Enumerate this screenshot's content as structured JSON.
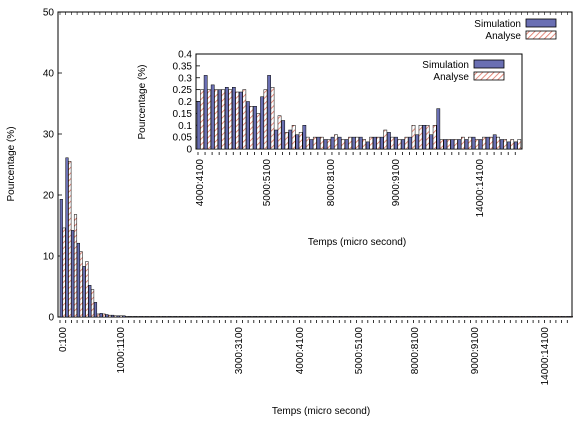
{
  "chart_data": [
    {
      "type": "bar",
      "ylabel": "Pourcentage (%)",
      "xlabel": "Temps (micro second)",
      "ylim": [
        0,
        50
      ],
      "yticks": [
        0,
        10,
        20,
        30,
        40,
        50
      ],
      "tick_labels": [
        "0:100",
        "1000:1100",
        "3000:3100",
        "4000:4100",
        "5000:5100",
        "8000:8100",
        "9000:9100",
        "14000:14100"
      ],
      "legend_position": "top-right",
      "series": [
        {
          "name": "Simulation",
          "color": "#6a6fb3",
          "values": [
            19.3,
            26.1,
            14.2,
            12.1,
            8.3,
            5.2,
            2.4,
            0.6,
            0.4,
            0.3,
            0.2,
            0.2,
            0.1,
            0.1,
            0.1,
            0.1,
            0.1,
            0.1,
            0.1,
            0.1,
            0.1,
            0.1,
            0.1,
            0.1,
            0.1,
            0.1,
            0.1,
            0.1,
            0.1,
            0.1,
            0.1,
            0.1,
            0.1,
            0.1,
            0.1,
            0.1,
            0.1,
            0.1,
            0.1,
            0.1,
            0.1,
            0.1,
            0.1,
            0.1,
            0.1,
            0.1,
            0.1,
            0.1,
            0.1,
            0.1,
            0.1,
            0.1,
            0.1,
            0.1,
            0.1,
            0.1,
            0.1,
            0.1,
            0.1,
            0.1,
            0.1,
            0.1,
            0.1,
            0.1,
            0.1,
            0.1,
            0.1,
            0.1,
            0.1,
            0.1,
            0.1,
            0.1,
            0.1,
            0.1,
            0.1,
            0.1,
            0.1,
            0.1,
            0.1,
            0.1,
            0.1,
            0.1,
            0.1,
            0.1,
            0.1,
            0.1,
            0.1,
            0.1,
            0.1,
            0.1
          ]
        },
        {
          "name": "Analyse",
          "color": "#e07060",
          "values": [
            14.6,
            25.5,
            16.8,
            10.7,
            9.1,
            4.5,
            0.5,
            0.5,
            0.3,
            0.2,
            0.2,
            0.1,
            0.1,
            0.1,
            0.1,
            0.1,
            0.1,
            0.1,
            0.1,
            0.1,
            0.1,
            0.1,
            0.1,
            0.1,
            0.1,
            0.1,
            0.1,
            0.1,
            0.1,
            0.1,
            0.1,
            0.1,
            0.1,
            0.1,
            0.1,
            0.1,
            0.1,
            0.1,
            0.1,
            0.1,
            0.1,
            0.1,
            0.1,
            0.1,
            0.1,
            0.1,
            0.1,
            0.1,
            0.1,
            0.1,
            0.1,
            0.1,
            0.1,
            0.1,
            0.1,
            0.1,
            0.1,
            0.1,
            0.1,
            0.1,
            0.1,
            0.1,
            0.1,
            0.1,
            0.1,
            0.1,
            0.1,
            0.1,
            0.1,
            0.1,
            0.1,
            0.1,
            0.1,
            0.1,
            0.1,
            0.1,
            0.1,
            0.1,
            0.1,
            0.1,
            0.1,
            0.1,
            0.1,
            0.1,
            0.1,
            0.1,
            0.1,
            0.1,
            0.1,
            0.1
          ]
        }
      ]
    },
    {
      "type": "bar",
      "ylabel": "Pourcentage (%)",
      "xlabel": "Temps (micro second)",
      "ylim": [
        0,
        0.4
      ],
      "yticks": [
        "0",
        "0.05",
        "0.1",
        "0.15",
        "0.2",
        "0.25",
        "0.3",
        "0.35",
        "0.4"
      ],
      "tick_labels": [
        "4000:4100",
        "5000:5100",
        "8000:8100",
        "9000:9100",
        "14000:14100"
      ],
      "legend_position": "top-right",
      "series": [
        {
          "name": "Simulation",
          "color": "#6a6fb3",
          "values": [
            0.2,
            0.31,
            0.27,
            0.25,
            0.26,
            0.26,
            0.24,
            0.2,
            0.18,
            0.22,
            0.31,
            0.08,
            0.12,
            0.08,
            0.06,
            0.1,
            0.04,
            0.05,
            0.04,
            0.05,
            0.05,
            0.04,
            0.05,
            0.05,
            0.03,
            0.05,
            0.05,
            0.07,
            0.05,
            0.04,
            0.05,
            0.06,
            0.1,
            0.06,
            0.17,
            0.04,
            0.04,
            0.04,
            0.04,
            0.05,
            0.04,
            0.05,
            0.06,
            0.04,
            0.03,
            0.03
          ]
        },
        {
          "name": "Analyse",
          "color": "#e07060",
          "values": [
            0.25,
            0.25,
            0.25,
            0.25,
            0.25,
            0.24,
            0.25,
            0.18,
            0.15,
            0.25,
            0.26,
            0.14,
            0.07,
            0.1,
            0.07,
            0.05,
            0.05,
            0.05,
            0.04,
            0.06,
            0.04,
            0.05,
            0.05,
            0.04,
            0.05,
            0.05,
            0.08,
            0.05,
            0.04,
            0.05,
            0.1,
            0.1,
            0.1,
            0.1,
            0.04,
            0.04,
            0.04,
            0.05,
            0.05,
            0.04,
            0.05,
            0.05,
            0.05,
            0.04,
            0.04,
            0.04
          ]
        }
      ]
    }
  ]
}
